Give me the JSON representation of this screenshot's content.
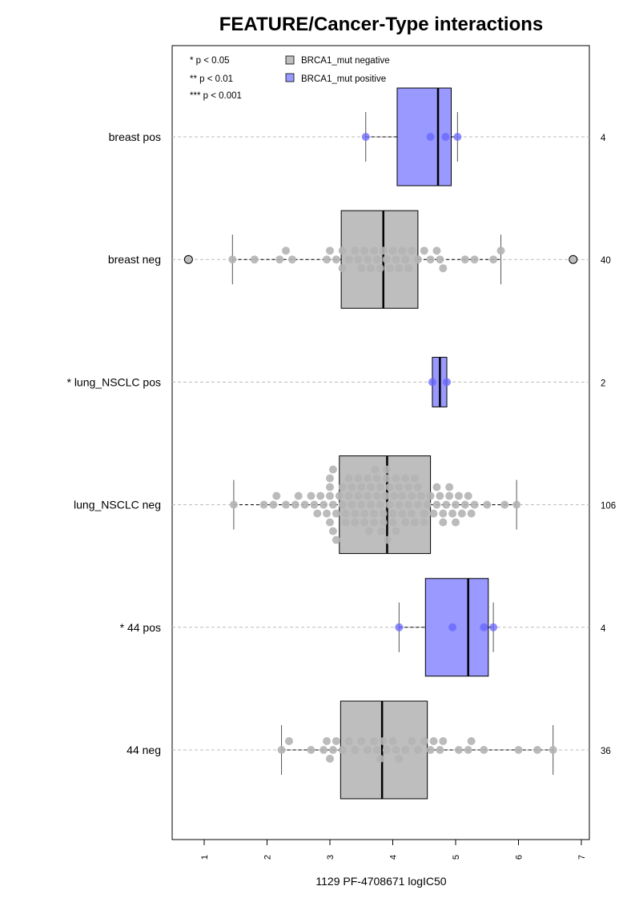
{
  "chart_data": {
    "type": "box",
    "orientation": "horizontal",
    "title": "FEATURE/Cancer-Type interactions",
    "xlabel": "1129 PF-4708671 logIC50",
    "xlim": [
      0.5,
      7.2
    ],
    "xticks": [
      1,
      2,
      3,
      4,
      5,
      6,
      7
    ],
    "grid": "horizontal dashed lines at each group",
    "legend": {
      "placement": "top-left",
      "significance": [
        "* p < 0.05",
        "** p < 0.01",
        "*** p < 0.001"
      ],
      "entries": [
        {
          "label": "BRCA1_mut negative",
          "color": "#bebebe"
        },
        {
          "label": "BRCA1_mut positive",
          "color": "#9999ff"
        }
      ]
    },
    "colors": {
      "negative_box": "#bebebe",
      "positive_box": "#9999ff",
      "negative_point": "#b4b4b4",
      "positive_point": "#6666ff"
    },
    "groups": [
      {
        "label": "breast pos",
        "n": "4",
        "status": "positive",
        "q1": 4.07,
        "median": 4.72,
        "q3": 4.93,
        "whisker_low": 3.57,
        "whisker_high": 5.03,
        "outliers": [],
        "points": [
          3.57,
          4.6,
          4.84,
          5.03
        ]
      },
      {
        "label": "breast neg",
        "n": "40",
        "status": "negative",
        "q1": 3.18,
        "median": 3.85,
        "q3": 4.4,
        "whisker_low": 1.45,
        "whisker_high": 5.72,
        "outliers": [
          0.75,
          6.87
        ],
        "points": [
          1.45,
          1.8,
          2.2,
          2.3,
          2.4,
          2.95,
          3.0,
          3.1,
          3.2,
          3.2,
          3.3,
          3.4,
          3.45,
          3.5,
          3.55,
          3.6,
          3.65,
          3.7,
          3.75,
          3.8,
          3.85,
          3.9,
          3.95,
          4.0,
          4.05,
          4.1,
          4.15,
          4.2,
          4.25,
          4.3,
          4.4,
          4.5,
          4.6,
          4.7,
          4.75,
          4.8,
          5.15,
          5.3,
          5.6,
          5.72
        ]
      },
      {
        "label": "* lung_NSCLC pos",
        "n": "2",
        "status": "positive",
        "q1": 4.63,
        "median": 4.75,
        "q3": 4.86,
        "whisker_low": 4.63,
        "whisker_high": 4.86,
        "outliers": [],
        "points": [
          4.63,
          4.86
        ]
      },
      {
        "label": "lung_NSCLC neg",
        "n": "106",
        "status": "negative",
        "q1": 3.15,
        "median": 3.91,
        "q3": 4.6,
        "whisker_low": 1.47,
        "whisker_high": 5.97,
        "outliers": [],
        "points": [
          1.47,
          1.95,
          2.1,
          2.15,
          2.3,
          2.45,
          2.5,
          2.6,
          2.7,
          2.75,
          2.8,
          2.85,
          2.9,
          2.95,
          3.0,
          3.0,
          3.0,
          3.0,
          3.05,
          3.05,
          3.05,
          3.1,
          3.1,
          3.15,
          3.2,
          3.2,
          3.25,
          3.25,
          3.3,
          3.3,
          3.35,
          3.35,
          3.4,
          3.4,
          3.45,
          3.45,
          3.5,
          3.5,
          3.55,
          3.55,
          3.6,
          3.6,
          3.62,
          3.65,
          3.65,
          3.7,
          3.7,
          3.72,
          3.75,
          3.75,
          3.8,
          3.8,
          3.82,
          3.85,
          3.85,
          3.88,
          3.9,
          3.9,
          3.92,
          3.95,
          3.95,
          4.0,
          4.0,
          4.02,
          4.05,
          4.05,
          4.1,
          4.1,
          4.15,
          4.15,
          4.2,
          4.2,
          4.25,
          4.25,
          4.3,
          4.3,
          4.35,
          4.35,
          4.4,
          4.4,
          4.45,
          4.5,
          4.5,
          4.55,
          4.6,
          4.65,
          4.7,
          4.7,
          4.75,
          4.8,
          4.8,
          4.85,
          4.9,
          4.9,
          4.95,
          5.0,
          5.0,
          5.05,
          5.1,
          5.15,
          5.2,
          5.25,
          5.3,
          5.5,
          5.78,
          5.97
        ]
      },
      {
        "label": "* 44 pos",
        "n": "4",
        "status": "positive",
        "q1": 4.52,
        "median": 5.2,
        "q3": 5.52,
        "whisker_low": 4.1,
        "whisker_high": 5.6,
        "outliers": [],
        "points": [
          4.1,
          4.95,
          5.45,
          5.6
        ]
      },
      {
        "label": "44 neg",
        "n": "36",
        "status": "negative",
        "q1": 3.17,
        "median": 3.83,
        "q3": 4.55,
        "whisker_low": 2.23,
        "whisker_high": 6.55,
        "outliers": [],
        "points": [
          2.23,
          2.35,
          2.7,
          2.9,
          2.95,
          3.0,
          3.05,
          3.1,
          3.2,
          3.3,
          3.4,
          3.5,
          3.6,
          3.7,
          3.75,
          3.8,
          3.85,
          3.9,
          4.0,
          4.05,
          4.1,
          4.2,
          4.3,
          4.4,
          4.5,
          4.6,
          4.65,
          4.75,
          4.8,
          5.05,
          5.2,
          5.25,
          5.45,
          6.0,
          6.3,
          6.55
        ]
      }
    ]
  }
}
